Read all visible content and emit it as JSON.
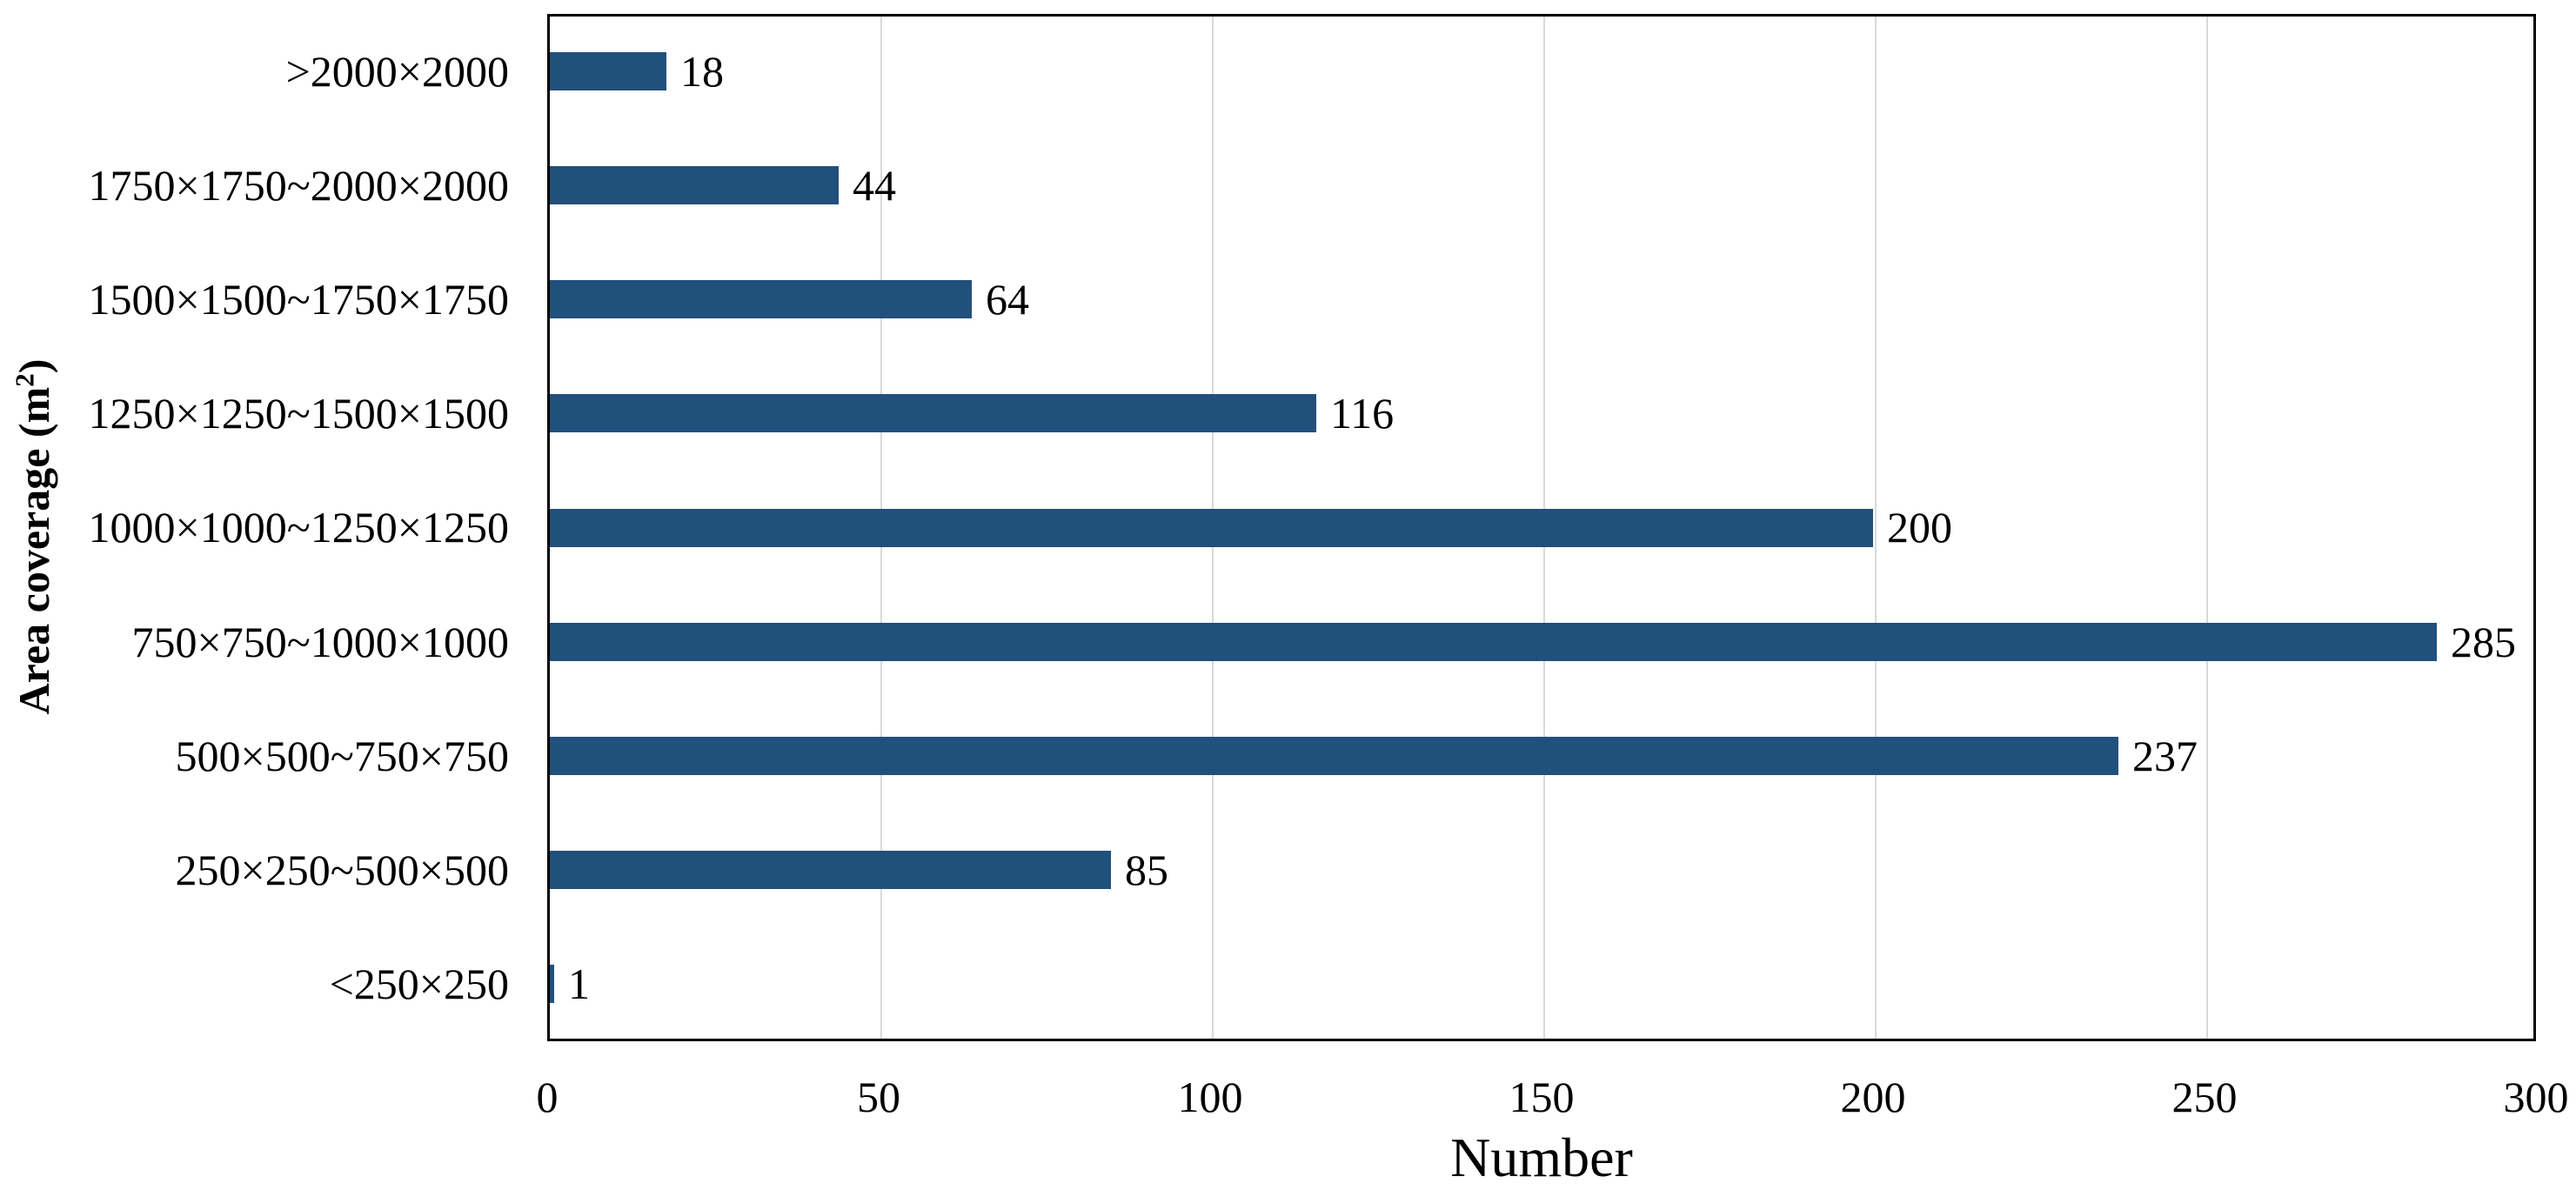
{
  "chart_data": {
    "type": "bar",
    "orientation": "horizontal",
    "title": "",
    "categories": [
      ">2000×2000",
      "1750×1750~2000×2000",
      "1500×1500~1750×1750",
      "1250×1250~1500×1500",
      "1000×1000~1250×1250",
      "750×750~1000×1000",
      "500×500~750×750",
      "250×250~500×500",
      "<250×250"
    ],
    "values": [
      18,
      44,
      64,
      116,
      200,
      285,
      237,
      85,
      1
    ],
    "data_labels": [
      "18",
      "44",
      "64",
      "116",
      "200",
      "285",
      "237",
      "85",
      "1"
    ],
    "xlabel": "Number",
    "ylabel": "Area coverage (m²)",
    "ylabel_parts": {
      "pre": "Area coverage (m",
      "sup": "2",
      "post": ")"
    },
    "xlim": [
      0,
      300
    ],
    "xticks": [
      0,
      50,
      100,
      150,
      200,
      250,
      300
    ],
    "grid": true,
    "legend": "none",
    "bar_color": "#21507C",
    "gridline_color": "#D9D9D9",
    "axis_color": "#000000",
    "text_color": "#000000"
  }
}
